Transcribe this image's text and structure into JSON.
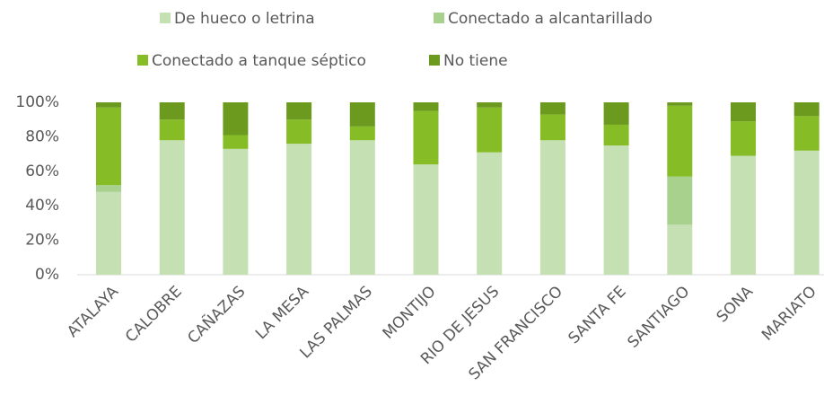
{
  "chart_data": {
    "type": "stacked_bar",
    "categories": [
      "ATALAYA",
      "CALOBRE",
      "CAÑAZAS",
      "LA MESA",
      "LAS PALMAS",
      "MONTIJO",
      "RIO DE JESUS",
      "SAN FRANCISCO",
      "SANTA FE",
      "SANTIAGO",
      "SONA",
      "MARIATO"
    ],
    "series": [
      {
        "name": "De hueco o letrina",
        "color": "#c5e0b3",
        "values": [
          48,
          78,
          73,
          76,
          78,
          64,
          71,
          78,
          75,
          29,
          69,
          72
        ]
      },
      {
        "name": "Conectado a alcantarillado",
        "color": "#a9d18e",
        "values": [
          4,
          0,
          0,
          0,
          0,
          0,
          0,
          0,
          0,
          28,
          0,
          0
        ]
      },
      {
        "name": "Conectado a tanque séptico",
        "color": "#86bc25",
        "values": [
          45,
          12,
          8,
          14,
          8,
          31,
          26,
          15,
          12,
          41,
          20,
          20
        ]
      },
      {
        "name": "No tiene",
        "color": "#6b9a1f",
        "values": [
          3,
          10,
          19,
          10,
          14,
          5,
          3,
          7,
          13,
          2,
          11,
          8
        ]
      }
    ],
    "ylim": [
      0,
      100
    ],
    "yticks": [
      {
        "value": 0,
        "label": "0%"
      },
      {
        "value": 20,
        "label": "20%"
      },
      {
        "value": 40,
        "label": "40%"
      },
      {
        "value": 60,
        "label": "60%"
      },
      {
        "value": 80,
        "label": "80%"
      },
      {
        "value": 100,
        "label": "100%"
      }
    ],
    "grid": false
  }
}
